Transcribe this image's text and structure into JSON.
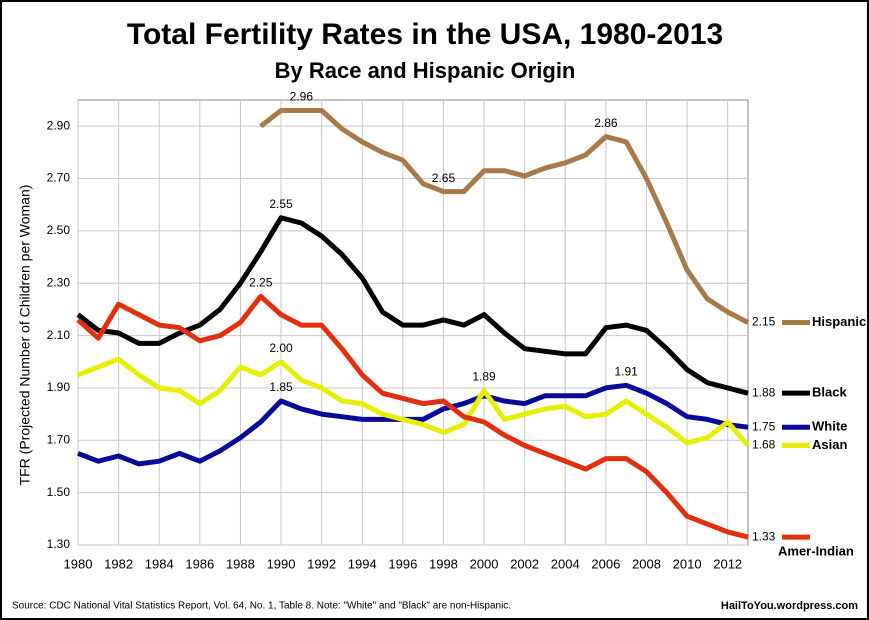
{
  "chart_data": {
    "type": "line",
    "title": "Total Fertility Rates in the USA, 1980-2013",
    "subtitle": "By Race and Hispanic Origin",
    "y_label": "TFR (Projected Number of Children per Woman)",
    "source": "Source: CDC National Vital Statistics Report, Vol. 64, No. 1, Table 8.   Note: \"White\" and \"Black\" are non-Hispanic.",
    "credit": "HailToYou.wordpress.com",
    "x": [
      1980,
      1981,
      1982,
      1983,
      1984,
      1985,
      1986,
      1987,
      1988,
      1989,
      1990,
      1991,
      1992,
      1993,
      1994,
      1995,
      1996,
      1997,
      1998,
      1999,
      2000,
      2001,
      2002,
      2003,
      2004,
      2005,
      2006,
      2007,
      2008,
      2009,
      2010,
      2011,
      2012,
      2013
    ],
    "xlim": [
      1980,
      2013
    ],
    "xticks": [
      1980,
      1982,
      1984,
      1986,
      1988,
      1990,
      1992,
      1994,
      1996,
      1998,
      2000,
      2002,
      2004,
      2006,
      2008,
      2010,
      2012
    ],
    "ylim": [
      1.3,
      3.0
    ],
    "yticks": [
      {
        "value": 1.3,
        "label": "1.30"
      },
      {
        "value": 1.5,
        "label": "1.50"
      },
      {
        "value": 1.7,
        "label": "1.70"
      },
      {
        "value": 1.9,
        "label": "1.90"
      },
      {
        "value": 2.1,
        "label": "2.10"
      },
      {
        "value": 2.3,
        "label": "2.30"
      },
      {
        "value": 2.5,
        "label": "2.50"
      },
      {
        "value": 2.7,
        "label": "2.70"
      },
      {
        "value": 2.9,
        "label": "2.90"
      }
    ],
    "grid": true,
    "series": [
      {
        "name": "Hispanic",
        "color": "#a87a4a",
        "values": [
          null,
          null,
          null,
          null,
          null,
          null,
          null,
          null,
          null,
          2.9,
          2.96,
          2.96,
          2.96,
          2.89,
          2.84,
          2.8,
          2.77,
          2.68,
          2.65,
          2.65,
          2.73,
          2.73,
          2.71,
          2.74,
          2.76,
          2.79,
          2.86,
          2.84,
          2.7,
          2.53,
          2.35,
          2.24,
          2.19,
          2.15
        ],
        "value_labels": [
          null,
          null,
          null,
          null,
          null,
          null,
          null,
          null,
          null,
          null,
          null,
          "2.96",
          null,
          null,
          null,
          null,
          null,
          null,
          "2.65",
          null,
          null,
          null,
          null,
          null,
          null,
          null,
          "2.86",
          null,
          null,
          null,
          null,
          null,
          null,
          "2.15"
        ]
      },
      {
        "name": "Black",
        "color": "#000000",
        "values": [
          2.18,
          2.12,
          2.11,
          2.07,
          2.07,
          2.11,
          2.14,
          2.2,
          2.3,
          2.42,
          2.55,
          2.53,
          2.48,
          2.41,
          2.32,
          2.19,
          2.14,
          2.14,
          2.16,
          2.14,
          2.18,
          2.11,
          2.05,
          2.04,
          2.03,
          2.03,
          2.13,
          2.14,
          2.12,
          2.05,
          1.97,
          1.92,
          1.9,
          1.88
        ],
        "value_labels": [
          null,
          null,
          null,
          null,
          null,
          null,
          null,
          null,
          null,
          null,
          "2.55",
          null,
          null,
          null,
          null,
          null,
          null,
          null,
          null,
          null,
          null,
          null,
          null,
          null,
          null,
          null,
          null,
          null,
          null,
          null,
          null,
          null,
          null,
          "1.88"
        ]
      },
      {
        "name": "White",
        "color": "#0a0a9a",
        "values": [
          1.65,
          1.62,
          1.64,
          1.61,
          1.62,
          1.65,
          1.62,
          1.66,
          1.71,
          1.77,
          1.85,
          1.82,
          1.8,
          1.79,
          1.78,
          1.78,
          1.78,
          1.78,
          1.82,
          1.84,
          1.87,
          1.85,
          1.84,
          1.87,
          1.87,
          1.87,
          1.9,
          1.91,
          1.88,
          1.84,
          1.79,
          1.78,
          1.76,
          1.75
        ],
        "value_labels": [
          null,
          null,
          null,
          null,
          null,
          null,
          null,
          null,
          null,
          null,
          "1.85",
          null,
          null,
          null,
          null,
          null,
          null,
          null,
          null,
          null,
          null,
          null,
          null,
          null,
          null,
          null,
          null,
          "1.91",
          null,
          null,
          null,
          null,
          null,
          "1.75"
        ]
      },
      {
        "name": "Asian",
        "color": "#e6ef00",
        "values": [
          1.95,
          1.98,
          2.01,
          1.95,
          1.9,
          1.89,
          1.84,
          1.89,
          1.98,
          1.95,
          2.0,
          1.93,
          1.9,
          1.85,
          1.84,
          1.8,
          1.78,
          1.76,
          1.73,
          1.76,
          1.89,
          1.78,
          1.8,
          1.82,
          1.83,
          1.79,
          1.8,
          1.85,
          1.8,
          1.75,
          1.69,
          1.71,
          1.77,
          1.68
        ],
        "value_labels": [
          null,
          null,
          null,
          null,
          null,
          null,
          null,
          null,
          null,
          null,
          "2.00",
          null,
          null,
          null,
          null,
          null,
          null,
          null,
          null,
          null,
          "1.89",
          null,
          null,
          null,
          null,
          null,
          null,
          null,
          null,
          null,
          null,
          null,
          null,
          "1.68"
        ]
      },
      {
        "name": "Amer-Indian",
        "color": "#e0300f",
        "values": [
          2.16,
          2.09,
          2.22,
          2.18,
          2.14,
          2.13,
          2.08,
          2.1,
          2.15,
          2.25,
          2.18,
          2.14,
          2.14,
          2.05,
          1.95,
          1.88,
          1.86,
          1.84,
          1.85,
          1.79,
          1.77,
          1.72,
          1.68,
          1.65,
          1.62,
          1.59,
          1.63,
          1.63,
          1.58,
          1.5,
          1.41,
          1.38,
          1.35,
          1.33
        ],
        "value_labels": [
          null,
          null,
          null,
          null,
          null,
          null,
          null,
          null,
          null,
          "2.25",
          null,
          null,
          null,
          null,
          null,
          null,
          null,
          null,
          null,
          null,
          null,
          null,
          null,
          null,
          null,
          null,
          null,
          null,
          null,
          null,
          null,
          null,
          null,
          "1.33"
        ]
      }
    ]
  }
}
